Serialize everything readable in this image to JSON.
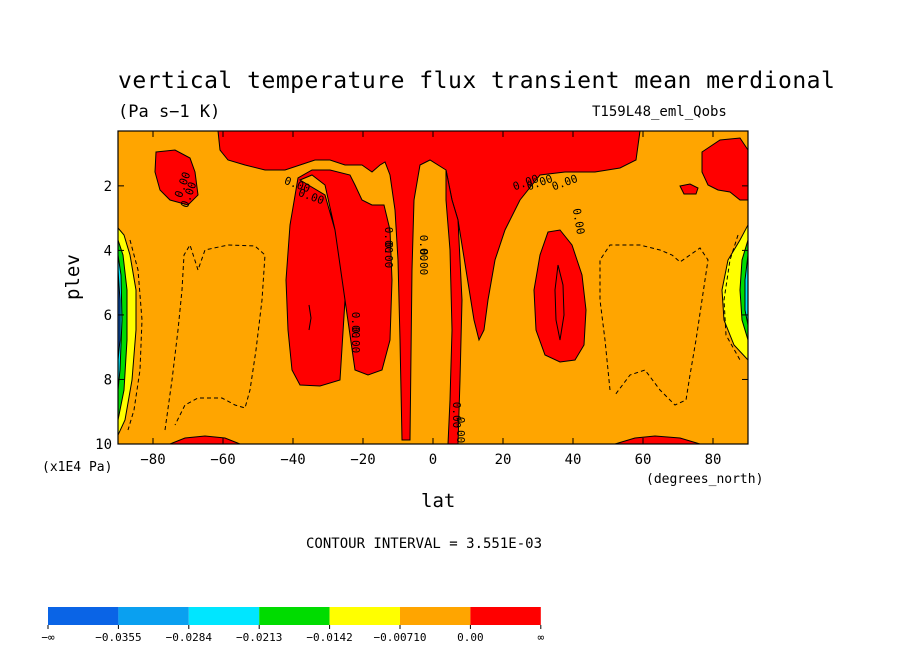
{
  "chart_data": {
    "type": "heatmap",
    "title": "vertical temperature flux transient mean merdional",
    "units_label": "(Pa s−1 K)",
    "dataset_label": "T159L48_eml_Qobs",
    "xlabel": "lat",
    "ylabel": "plev",
    "x_unit_label": "(degrees_north)",
    "y_unit_label": "(x1E4 Pa)",
    "xlim": [
      -90,
      90
    ],
    "ylim": [
      10,
      0.3
    ],
    "x_ticks": [
      -80,
      -60,
      -40,
      -20,
      0,
      20,
      40,
      60,
      80
    ],
    "x_tick_labels": [
      "−80",
      "−60",
      "−40",
      "−20",
      "0",
      "20",
      "40",
      "60",
      "80"
    ],
    "y_ticks": [
      2,
      4,
      6,
      8,
      10
    ],
    "y_tick_labels": [
      "2",
      "4",
      "6",
      "8",
      "10"
    ],
    "contour_interval_text": "CONTOUR INTERVAL = 3.551E-03",
    "contour_labels": [
      "0.00"
    ],
    "colorbar": {
      "colors": [
        "#0a64e6",
        "#0aa0f0",
        "#00e6ff",
        "#00dc00",
        "#ffff00",
        "#ffa500",
        "#ff0000"
      ],
      "labels": [
        "−∞",
        "−0.0355",
        "−0.0284",
        "−0.0213",
        "−0.0142",
        "−0.00710",
        "0.00",
        "∞"
      ]
    }
  }
}
